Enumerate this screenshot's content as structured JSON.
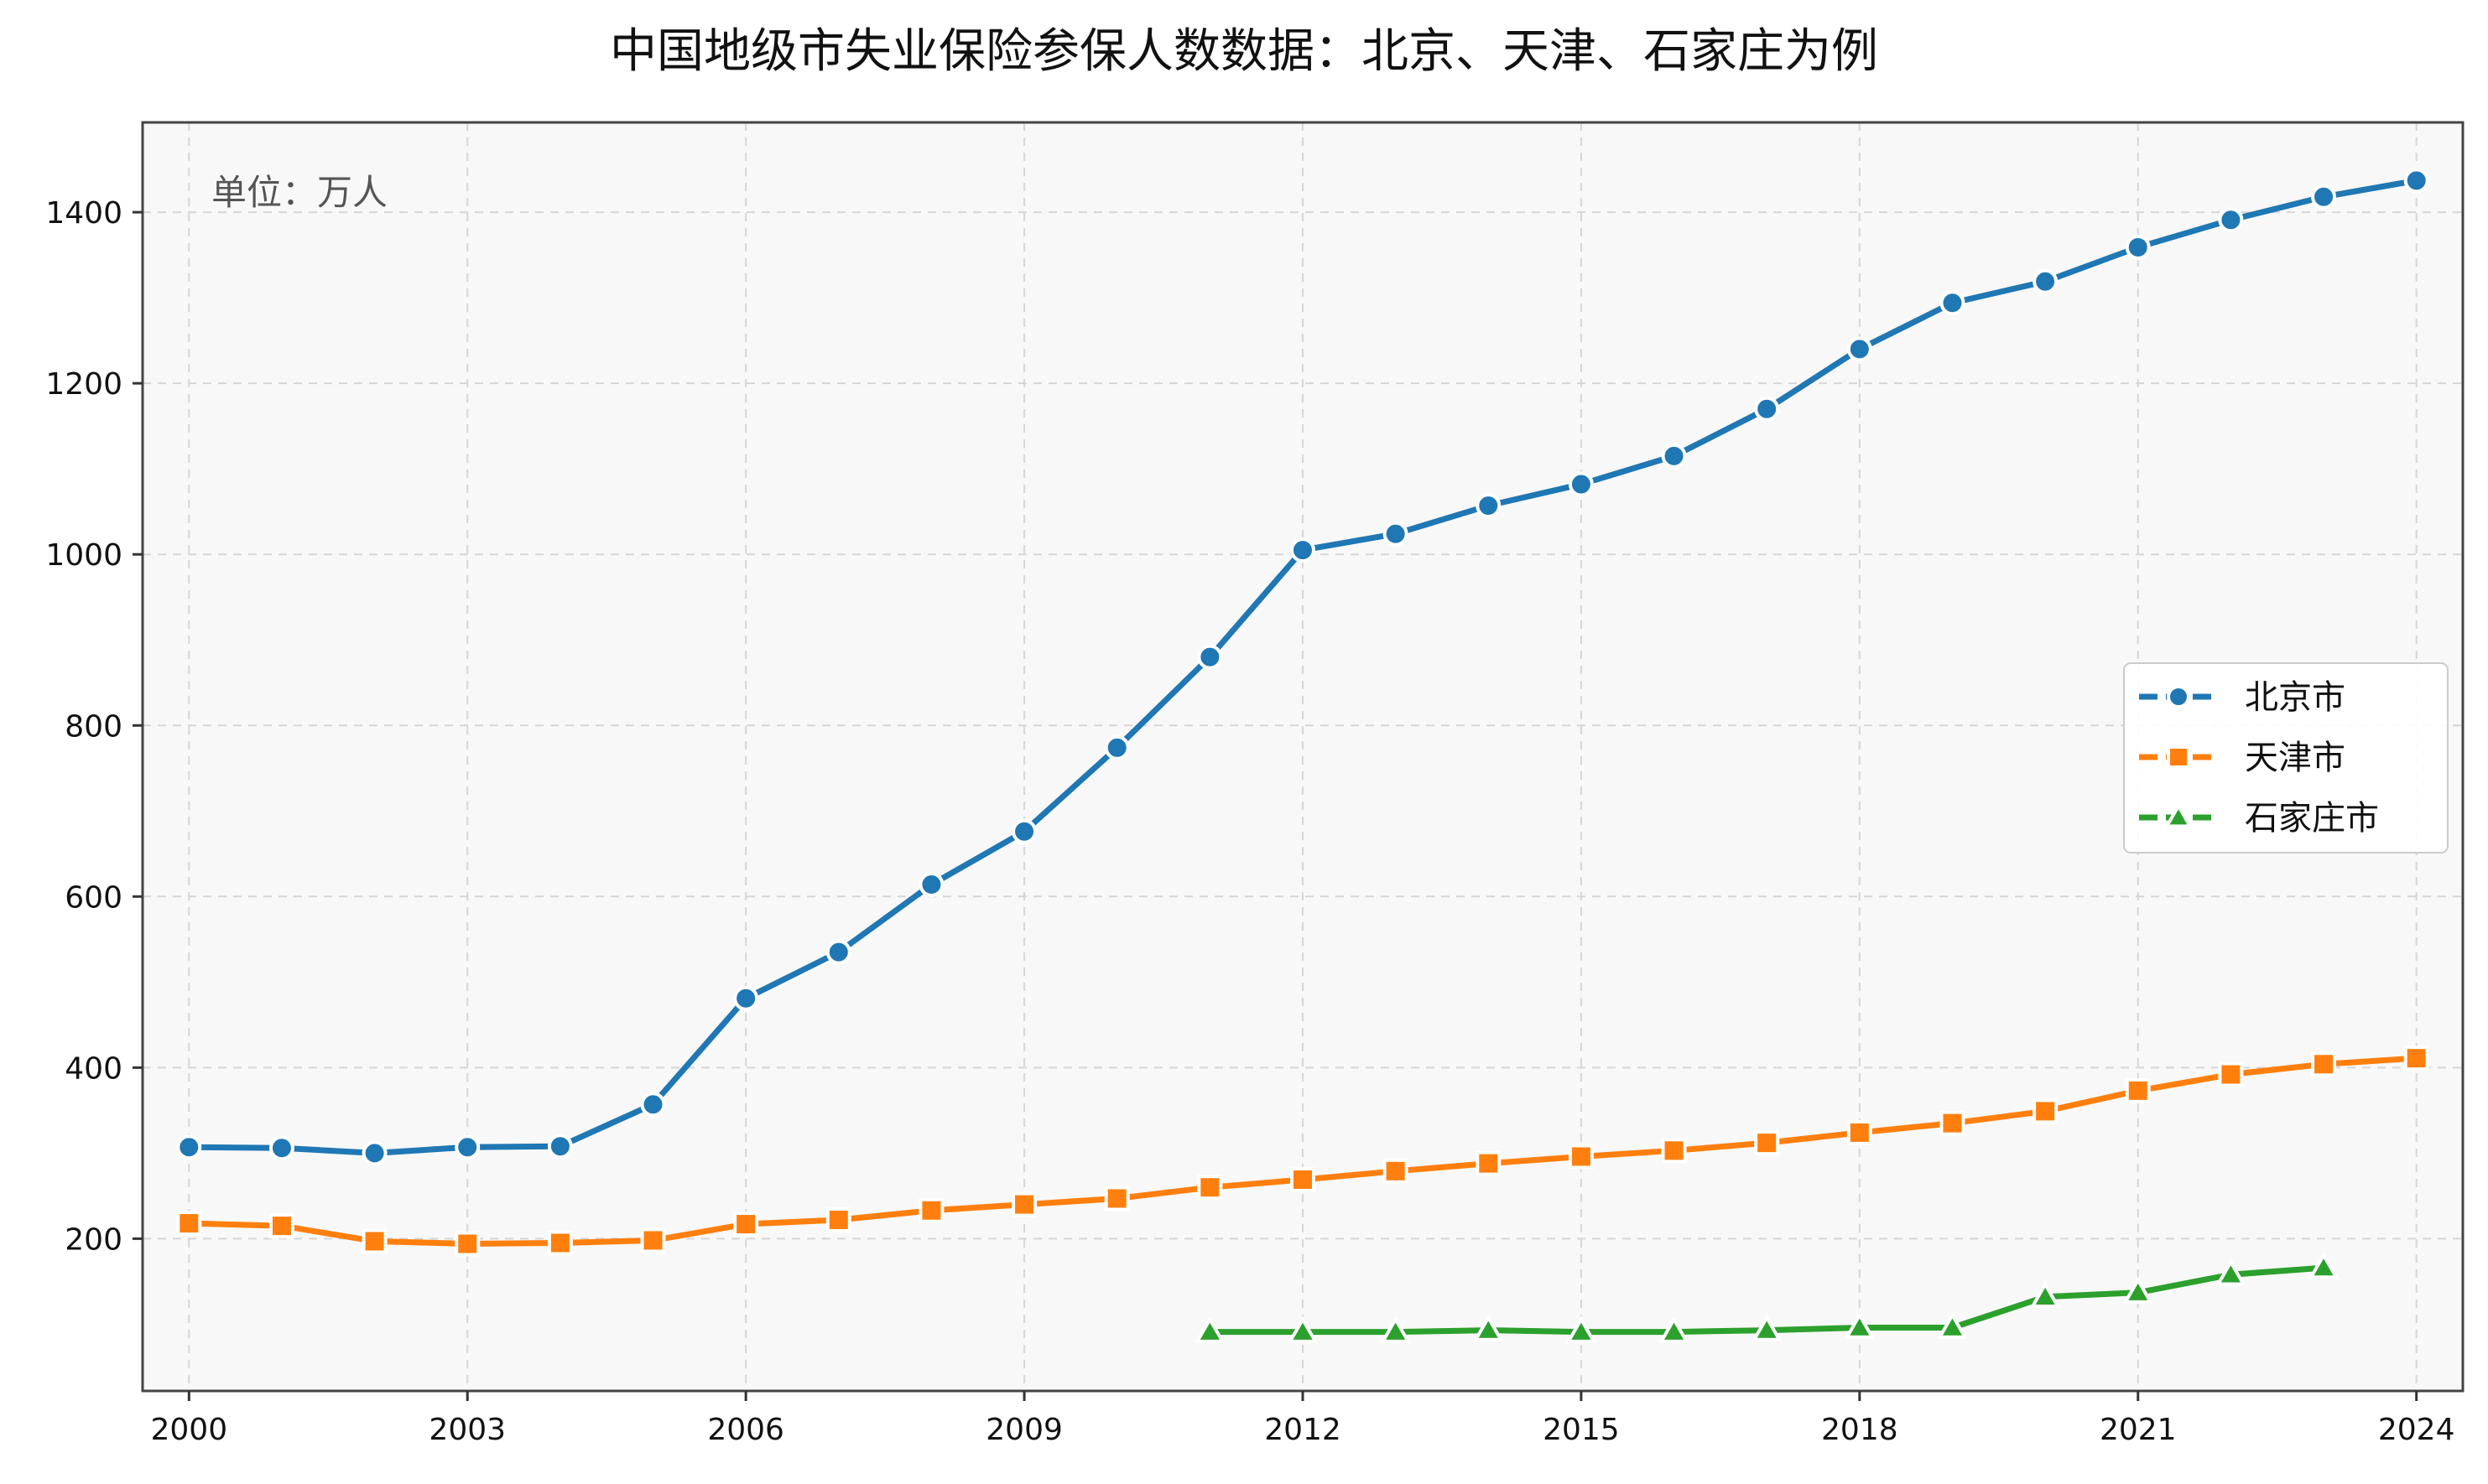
{
  "chart_data": {
    "type": "line",
    "title": "中国地级市失业保险参保人数数据：北京、天津、石家庄为例",
    "annotation": "单位：万人",
    "xlabel": "",
    "ylabel": "",
    "xlim": [
      1999.5,
      2024.5
    ],
    "ylim": [
      22,
      1505
    ],
    "x_ticks": [
      2000,
      2003,
      2006,
      2009,
      2012,
      2015,
      2018,
      2021,
      2024
    ],
    "x_tick_labels": [
      "2000",
      "2003",
      "2006",
      "2009",
      "2012",
      "2015",
      "2018",
      "2021",
      "2024"
    ],
    "y_ticks": [
      200,
      400,
      600,
      800,
      1000,
      1200,
      1400
    ],
    "y_tick_labels": [
      "200",
      "400",
      "600",
      "800",
      "1000",
      "1200",
      "1400"
    ],
    "grid": true,
    "legend_position": "right",
    "series": [
      {
        "name": "北京市",
        "color": "#1f77b4",
        "marker": "circle",
        "x": [
          2000,
          2001,
          2002,
          2003,
          2004,
          2005,
          2006,
          2007,
          2008,
          2009,
          2010,
          2011,
          2012,
          2013,
          2014,
          2015,
          2016,
          2017,
          2018,
          2019,
          2020,
          2021,
          2022,
          2023,
          2024
        ],
        "values": [
          307,
          306,
          300,
          307,
          308,
          357,
          481,
          535,
          614,
          676,
          774,
          880,
          1005,
          1024,
          1057,
          1082,
          1115,
          1170,
          1240,
          1294,
          1319,
          1359,
          1391,
          1418,
          1437
        ]
      },
      {
        "name": "天津市",
        "color": "#ff7f0e",
        "marker": "square",
        "x": [
          2000,
          2001,
          2002,
          2003,
          2004,
          2005,
          2006,
          2007,
          2008,
          2009,
          2010,
          2011,
          2012,
          2013,
          2014,
          2015,
          2016,
          2017,
          2018,
          2019,
          2020,
          2021,
          2022,
          2023,
          2024
        ],
        "values": [
          218,
          215,
          197,
          194,
          195,
          198,
          217,
          222,
          233,
          240,
          247,
          260,
          269,
          279,
          288,
          296,
          303,
          312,
          324,
          335,
          349,
          373,
          392,
          404,
          411
        ]
      },
      {
        "name": "石家庄市",
        "color": "#2ca02c",
        "marker": "triangle",
        "x": [
          2011,
          2012,
          2013,
          2014,
          2015,
          2016,
          2017,
          2018,
          2019,
          2020,
          2021,
          2022,
          2023
        ],
        "values": [
          91,
          91,
          91,
          93,
          91,
          91,
          93,
          96,
          96,
          132,
          137,
          158,
          166
        ]
      }
    ]
  }
}
